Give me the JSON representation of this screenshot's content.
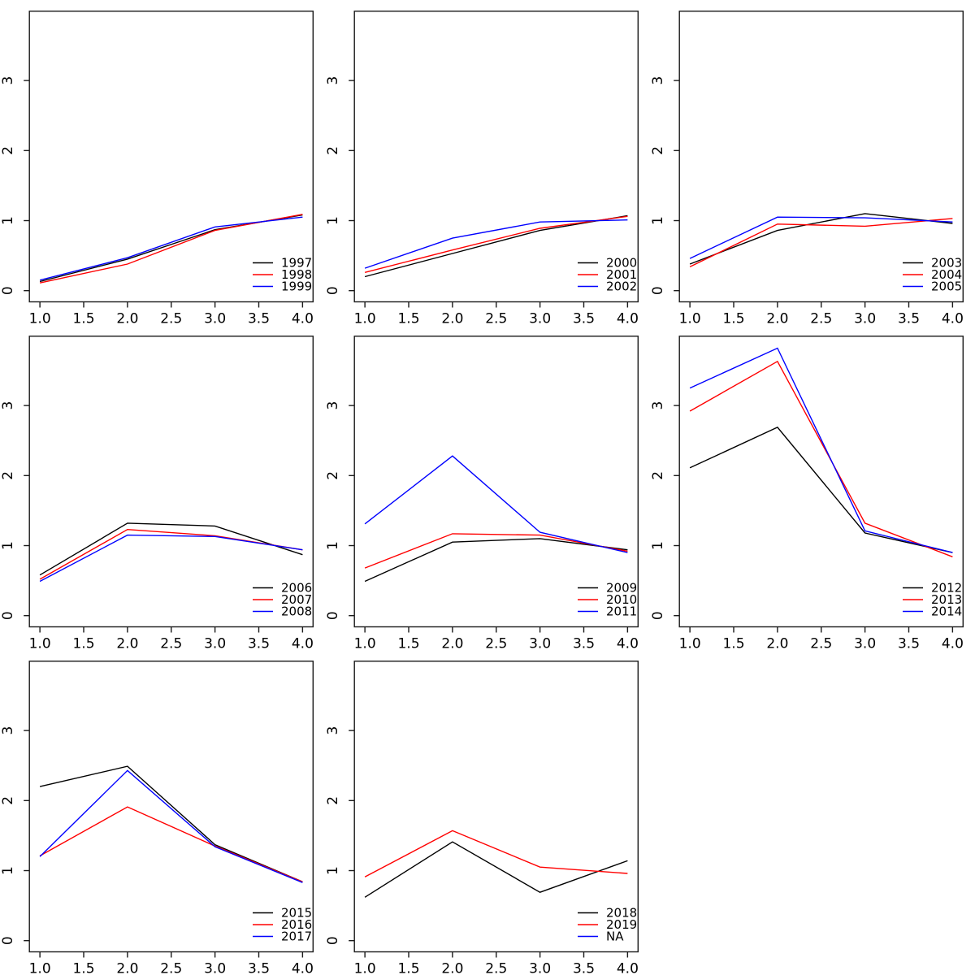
{
  "figure": {
    "background": "#FFFFFF",
    "grid_rows": 3,
    "grid_cols": 3,
    "empty_cell_index": 8
  },
  "style": {
    "axis_color": "#1a1a1a",
    "series_black": "#000000",
    "series_red": "#FF0000",
    "series_blue": "#0000FF"
  },
  "axis": {
    "xlim": [
      0.88,
      4.12
    ],
    "ylim": [
      -0.16,
      3.99
    ],
    "x_tick_values": [
      1.0,
      1.5,
      2.0,
      2.5,
      3.0,
      3.5,
      4.0
    ],
    "x_tick_labels": [
      "1.0",
      "1.5",
      "2.0",
      "2.5",
      "3.0",
      "3.5",
      "4.0"
    ],
    "y_tick_values": [
      0,
      1,
      2,
      3
    ],
    "y_tick_labels": [
      "0",
      "1",
      "2",
      "3"
    ],
    "grid_lines": false,
    "legend_position": "bottomright"
  },
  "chart_data": [
    {
      "type": "line",
      "x": [
        1,
        2,
        3,
        4
      ],
      "series": [
        {
          "name": "1997",
          "color": "#000000",
          "values": [
            0.13,
            0.45,
            0.87,
            1.08
          ]
        },
        {
          "name": "1998",
          "color": "#FF0000",
          "values": [
            0.11,
            0.38,
            0.86,
            1.09
          ]
        },
        {
          "name": "1999",
          "color": "#0000FF",
          "values": [
            0.15,
            0.47,
            0.91,
            1.05
          ]
        }
      ]
    },
    {
      "type": "line",
      "x": [
        1,
        2,
        3,
        4
      ],
      "series": [
        {
          "name": "2000",
          "color": "#000000",
          "values": [
            0.2,
            0.53,
            0.86,
            1.07
          ]
        },
        {
          "name": "2001",
          "color": "#FF0000",
          "values": [
            0.26,
            0.58,
            0.89,
            1.06
          ]
        },
        {
          "name": "2002",
          "color": "#0000FF",
          "values": [
            0.32,
            0.75,
            0.98,
            1.01
          ]
        }
      ]
    },
    {
      "type": "line",
      "x": [
        1,
        2,
        3,
        4
      ],
      "series": [
        {
          "name": "2003",
          "color": "#000000",
          "values": [
            0.38,
            0.86,
            1.1,
            0.96
          ]
        },
        {
          "name": "2004",
          "color": "#FF0000",
          "values": [
            0.34,
            0.95,
            0.92,
            1.03
          ]
        },
        {
          "name": "2005",
          "color": "#0000FF",
          "values": [
            0.46,
            1.05,
            1.04,
            0.98
          ]
        }
      ]
    },
    {
      "type": "line",
      "x": [
        1,
        2,
        3,
        4
      ],
      "series": [
        {
          "name": "2006",
          "color": "#000000",
          "values": [
            0.58,
            1.32,
            1.28,
            0.87
          ]
        },
        {
          "name": "2007",
          "color": "#FF0000",
          "values": [
            0.52,
            1.23,
            1.14,
            0.94
          ]
        },
        {
          "name": "2008",
          "color": "#0000FF",
          "values": [
            0.49,
            1.15,
            1.13,
            0.94
          ]
        }
      ]
    },
    {
      "type": "line",
      "x": [
        1,
        2,
        3,
        4
      ],
      "series": [
        {
          "name": "2009",
          "color": "#000000",
          "values": [
            0.49,
            1.05,
            1.1,
            0.94
          ]
        },
        {
          "name": "2010",
          "color": "#FF0000",
          "values": [
            0.68,
            1.17,
            1.15,
            0.92
          ]
        },
        {
          "name": "2011",
          "color": "#0000FF",
          "values": [
            1.31,
            2.28,
            1.19,
            0.9
          ]
        }
      ]
    },
    {
      "type": "line",
      "x": [
        1,
        2,
        3,
        4
      ],
      "series": [
        {
          "name": "2012",
          "color": "#000000",
          "values": [
            2.11,
            2.69,
            1.18,
            0.9
          ]
        },
        {
          "name": "2013",
          "color": "#FF0000",
          "values": [
            2.92,
            3.63,
            1.32,
            0.84
          ]
        },
        {
          "name": "2014",
          "color": "#0000FF",
          "values": [
            3.25,
            3.82,
            1.21,
            0.9
          ]
        }
      ]
    },
    {
      "type": "line",
      "x": [
        1,
        2,
        3,
        4
      ],
      "series": [
        {
          "name": "2015",
          "color": "#000000",
          "values": [
            2.2,
            2.49,
            1.37,
            0.84
          ]
        },
        {
          "name": "2016",
          "color": "#FF0000",
          "values": [
            1.21,
            1.91,
            1.35,
            0.84
          ]
        },
        {
          "name": "2017",
          "color": "#0000FF",
          "values": [
            1.2,
            2.43,
            1.34,
            0.83
          ]
        }
      ]
    },
    {
      "type": "line",
      "x": [
        1,
        2,
        3,
        4
      ],
      "series": [
        {
          "name": "2018",
          "color": "#000000",
          "values": [
            0.62,
            1.41,
            0.69,
            1.14
          ]
        },
        {
          "name": "2019",
          "color": "#FF0000",
          "values": [
            0.91,
            1.57,
            1.05,
            0.96
          ]
        },
        {
          "name": "NA",
          "color": "#0000FF",
          "values": null
        }
      ]
    }
  ]
}
